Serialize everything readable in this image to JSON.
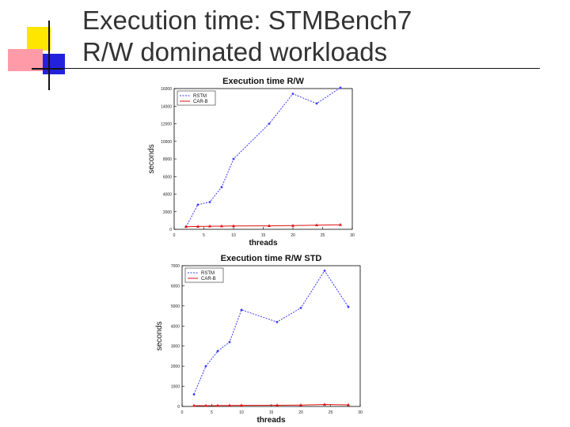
{
  "slide": {
    "title_line1": "Execution time: STMBench7",
    "title_line2": "R/W dominated workloads"
  },
  "colors": {
    "rstm": "#3a3aff",
    "carb": "#dd1111"
  },
  "chart_data": [
    {
      "type": "line",
      "title": "Execution time R/W",
      "xlabel": "threads",
      "ylabel": "seconds",
      "xlim": [
        0,
        30
      ],
      "ylim": [
        0,
        16000
      ],
      "xticks": [
        0,
        5,
        10,
        15,
        20,
        25,
        30
      ],
      "yticks": [
        0,
        2000,
        4000,
        6000,
        8000,
        10000,
        12000,
        14000,
        16000
      ],
      "grid": false,
      "legend": "top-left",
      "x": [
        2,
        4,
        6,
        8,
        10,
        16,
        20,
        24,
        28
      ],
      "series": [
        {
          "name": "RSTM",
          "color": "#3a3aff",
          "dashed": true,
          "values": [
            300,
            2800,
            3100,
            4800,
            8000,
            12000,
            15400,
            14300,
            16100
          ]
        },
        {
          "name": "CAR-B",
          "color": "#dd1111",
          "dashed": false,
          "values": [
            300,
            320,
            350,
            360,
            380,
            400,
            420,
            480,
            520
          ]
        }
      ]
    },
    {
      "type": "line",
      "title": "Execution time R/W STD",
      "xlabel": "threads",
      "ylabel": "seconds",
      "xlim": [
        0,
        30
      ],
      "ylim": [
        0,
        7000
      ],
      "xticks": [
        0,
        5,
        10,
        15,
        20,
        25,
        30
      ],
      "yticks": [
        0,
        1000,
        2000,
        3000,
        4000,
        5000,
        6000,
        7000
      ],
      "grid": false,
      "legend": "top-left",
      "x": [
        2,
        4,
        6,
        8,
        10,
        16,
        20,
        24,
        28
      ],
      "series": [
        {
          "name": "RSTM",
          "color": "#3a3aff",
          "dashed": true,
          "values": [
            600,
            2000,
            2750,
            3200,
            4800,
            4200,
            4900,
            6750,
            4950
          ]
        },
        {
          "name": "CAR-B",
          "color": "#dd1111",
          "dashed": false,
          "values": [
            40,
            40,
            45,
            50,
            55,
            60,
            65,
            100,
            80
          ]
        }
      ]
    }
  ]
}
